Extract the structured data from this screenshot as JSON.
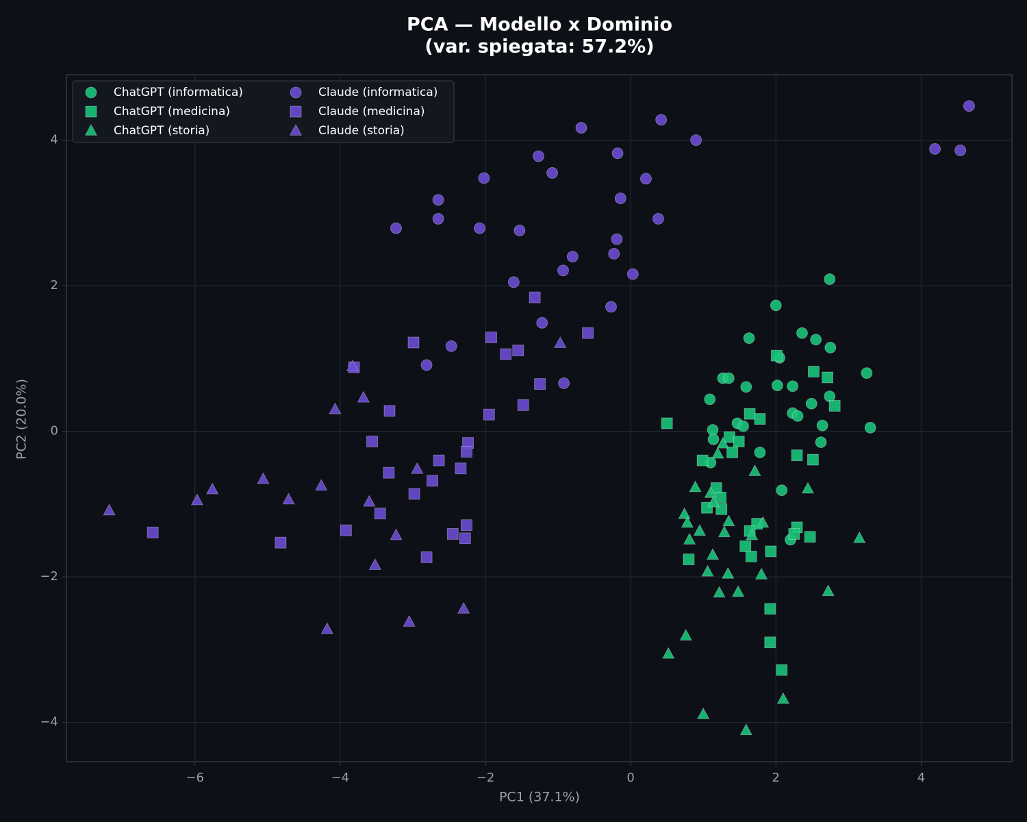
{
  "chart_data": {
    "type": "scatter",
    "title": "PCA — Modello x Dominio",
    "subtitle": "(var. spiegata: 57.2%)",
    "x_label": "PC1 (37.1%)",
    "y_label": "PC2 (20.0%)",
    "xlim": [
      -7.77,
      5.25
    ],
    "ylim": [
      -4.54,
      4.9
    ],
    "xticks": [
      {
        "value": -6,
        "label": "−6"
      },
      {
        "value": -4,
        "label": "−4"
      },
      {
        "value": -2,
        "label": "−2"
      },
      0,
      2,
      4
    ],
    "yticks": [
      {
        "value": -4,
        "label": "−4"
      },
      {
        "value": -2,
        "label": "−2"
      },
      0,
      2,
      4
    ],
    "grid": true,
    "legend": "upper left",
    "legend_columns": 2,
    "series": [
      {
        "name": "ChatGPT (informatica)",
        "color": "#19c47a",
        "marker": "circle",
        "x": [
          2.74,
          2.0,
          2.36,
          1.63,
          2.55,
          2.75,
          2.05,
          1.27,
          1.35,
          3.25,
          1.59,
          2.02,
          2.23,
          1.09,
          2.74,
          2.49,
          2.23,
          2.3,
          1.47,
          1.55,
          2.64,
          3.3,
          1.13,
          1.14,
          2.62,
          1.78,
          1.1,
          2.08,
          2.2
        ],
        "y": [
          2.09,
          1.73,
          1.35,
          1.28,
          1.26,
          1.15,
          1.01,
          0.73,
          0.73,
          0.8,
          0.61,
          0.63,
          0.62,
          0.44,
          0.48,
          0.38,
          0.25,
          0.21,
          0.11,
          0.07,
          0.08,
          0.05,
          0.02,
          -0.11,
          -0.15,
          -0.29,
          -0.43,
          -0.81,
          -1.49
        ]
      },
      {
        "name": "ChatGPT (medicina)",
        "color": "#19c47a",
        "marker": "square",
        "x": [
          2.01,
          2.52,
          2.71,
          2.81,
          0.5,
          1.64,
          1.78,
          1.36,
          1.49,
          1.4,
          0.99,
          2.29,
          2.51,
          1.18,
          1.24,
          1.25,
          1.05,
          1.74,
          1.64,
          2.29,
          2.25,
          2.47,
          1.58,
          1.93,
          1.66,
          0.8,
          1.92,
          1.92,
          2.08
        ],
        "y": [
          1.04,
          0.82,
          0.74,
          0.35,
          0.11,
          0.24,
          0.17,
          -0.08,
          -0.14,
          -0.29,
          -0.4,
          -0.33,
          -0.39,
          -0.78,
          -0.91,
          -1.07,
          -1.05,
          -1.27,
          -1.37,
          -1.32,
          -1.41,
          -1.45,
          -1.58,
          -1.65,
          -1.72,
          -1.76,
          -2.44,
          -2.9,
          -3.28
        ]
      },
      {
        "name": "ChatGPT (storia)",
        "color": "#19c47a",
        "marker": "triangle",
        "x": [
          1.27,
          1.2,
          1.71,
          0.89,
          2.44,
          1.1,
          1.14,
          0.74,
          0.78,
          1.35,
          1.82,
          0.95,
          1.29,
          1.67,
          0.81,
          3.15,
          1.13,
          1.06,
          1.34,
          1.8,
          1.22,
          1.48,
          2.72,
          0.76,
          0.52,
          2.1,
          1.0,
          1.59
        ],
        "y": [
          -0.17,
          -0.31,
          -0.55,
          -0.77,
          -0.79,
          -0.85,
          -0.98,
          -1.14,
          -1.26,
          -1.24,
          -1.26,
          -1.37,
          -1.39,
          -1.43,
          -1.49,
          -1.47,
          -1.7,
          -1.93,
          -1.96,
          -1.97,
          -2.22,
          -2.21,
          -2.2,
          -2.81,
          -3.06,
          -3.68,
          -3.89,
          -4.11
        ]
      },
      {
        "name": "Claude (informatica)",
        "color": "#6a4dd3",
        "marker": "circle",
        "x": [
          4.66,
          4.19,
          4.54,
          0.42,
          -0.68,
          0.9,
          -1.27,
          -0.18,
          -1.08,
          -2.02,
          0.21,
          -2.65,
          -0.14,
          -3.23,
          -2.65,
          -2.08,
          0.38,
          -1.53,
          -0.19,
          -0.8,
          -0.23,
          -0.93,
          0.03,
          -1.61,
          -0.27,
          -1.22,
          -2.47,
          -2.81,
          -0.92
        ],
        "y": [
          4.47,
          3.88,
          3.86,
          4.28,
          4.17,
          4.0,
          3.78,
          3.82,
          3.55,
          3.48,
          3.47,
          3.18,
          3.2,
          2.79,
          2.92,
          2.79,
          2.92,
          2.76,
          2.64,
          2.4,
          2.44,
          2.21,
          2.16,
          2.05,
          1.71,
          1.49,
          1.17,
          0.91,
          0.66
        ]
      },
      {
        "name": "Claude (medicina)",
        "color": "#6a4dd3",
        "marker": "square",
        "x": [
          -1.32,
          -0.59,
          -2.99,
          -1.92,
          -1.72,
          -1.55,
          -3.81,
          -1.25,
          -3.32,
          -1.48,
          -1.95,
          -3.56,
          -2.24,
          -2.26,
          -2.64,
          -2.34,
          -3.33,
          -2.73,
          -2.98,
          -3.45,
          -6.58,
          -3.92,
          -2.26,
          -2.45,
          -2.28,
          -4.82,
          -2.81
        ],
        "y": [
          1.84,
          1.35,
          1.22,
          1.29,
          1.06,
          1.11,
          0.88,
          0.65,
          0.28,
          0.36,
          0.23,
          -0.14,
          -0.16,
          -0.28,
          -0.4,
          -0.51,
          -0.57,
          -0.68,
          -0.86,
          -1.13,
          -1.39,
          -1.36,
          -1.29,
          -1.41,
          -1.47,
          -1.53,
          -1.73
        ]
      },
      {
        "name": "Claude (storia)",
        "color": "#6a4dd3",
        "marker": "triangle",
        "x": [
          -7.18,
          -0.97,
          -3.83,
          -3.68,
          -4.07,
          -2.94,
          -5.06,
          -5.76,
          -5.97,
          -4.26,
          -4.71,
          -3.6,
          -3.23,
          -3.52,
          -2.3,
          -3.05,
          -4.18
        ],
        "y": [
          -1.09,
          1.21,
          0.89,
          0.46,
          0.3,
          -0.52,
          -0.66,
          -0.8,
          -0.95,
          -0.75,
          -0.94,
          -0.97,
          -1.43,
          -1.84,
          -2.44,
          -2.62,
          -2.72
        ]
      }
    ]
  }
}
